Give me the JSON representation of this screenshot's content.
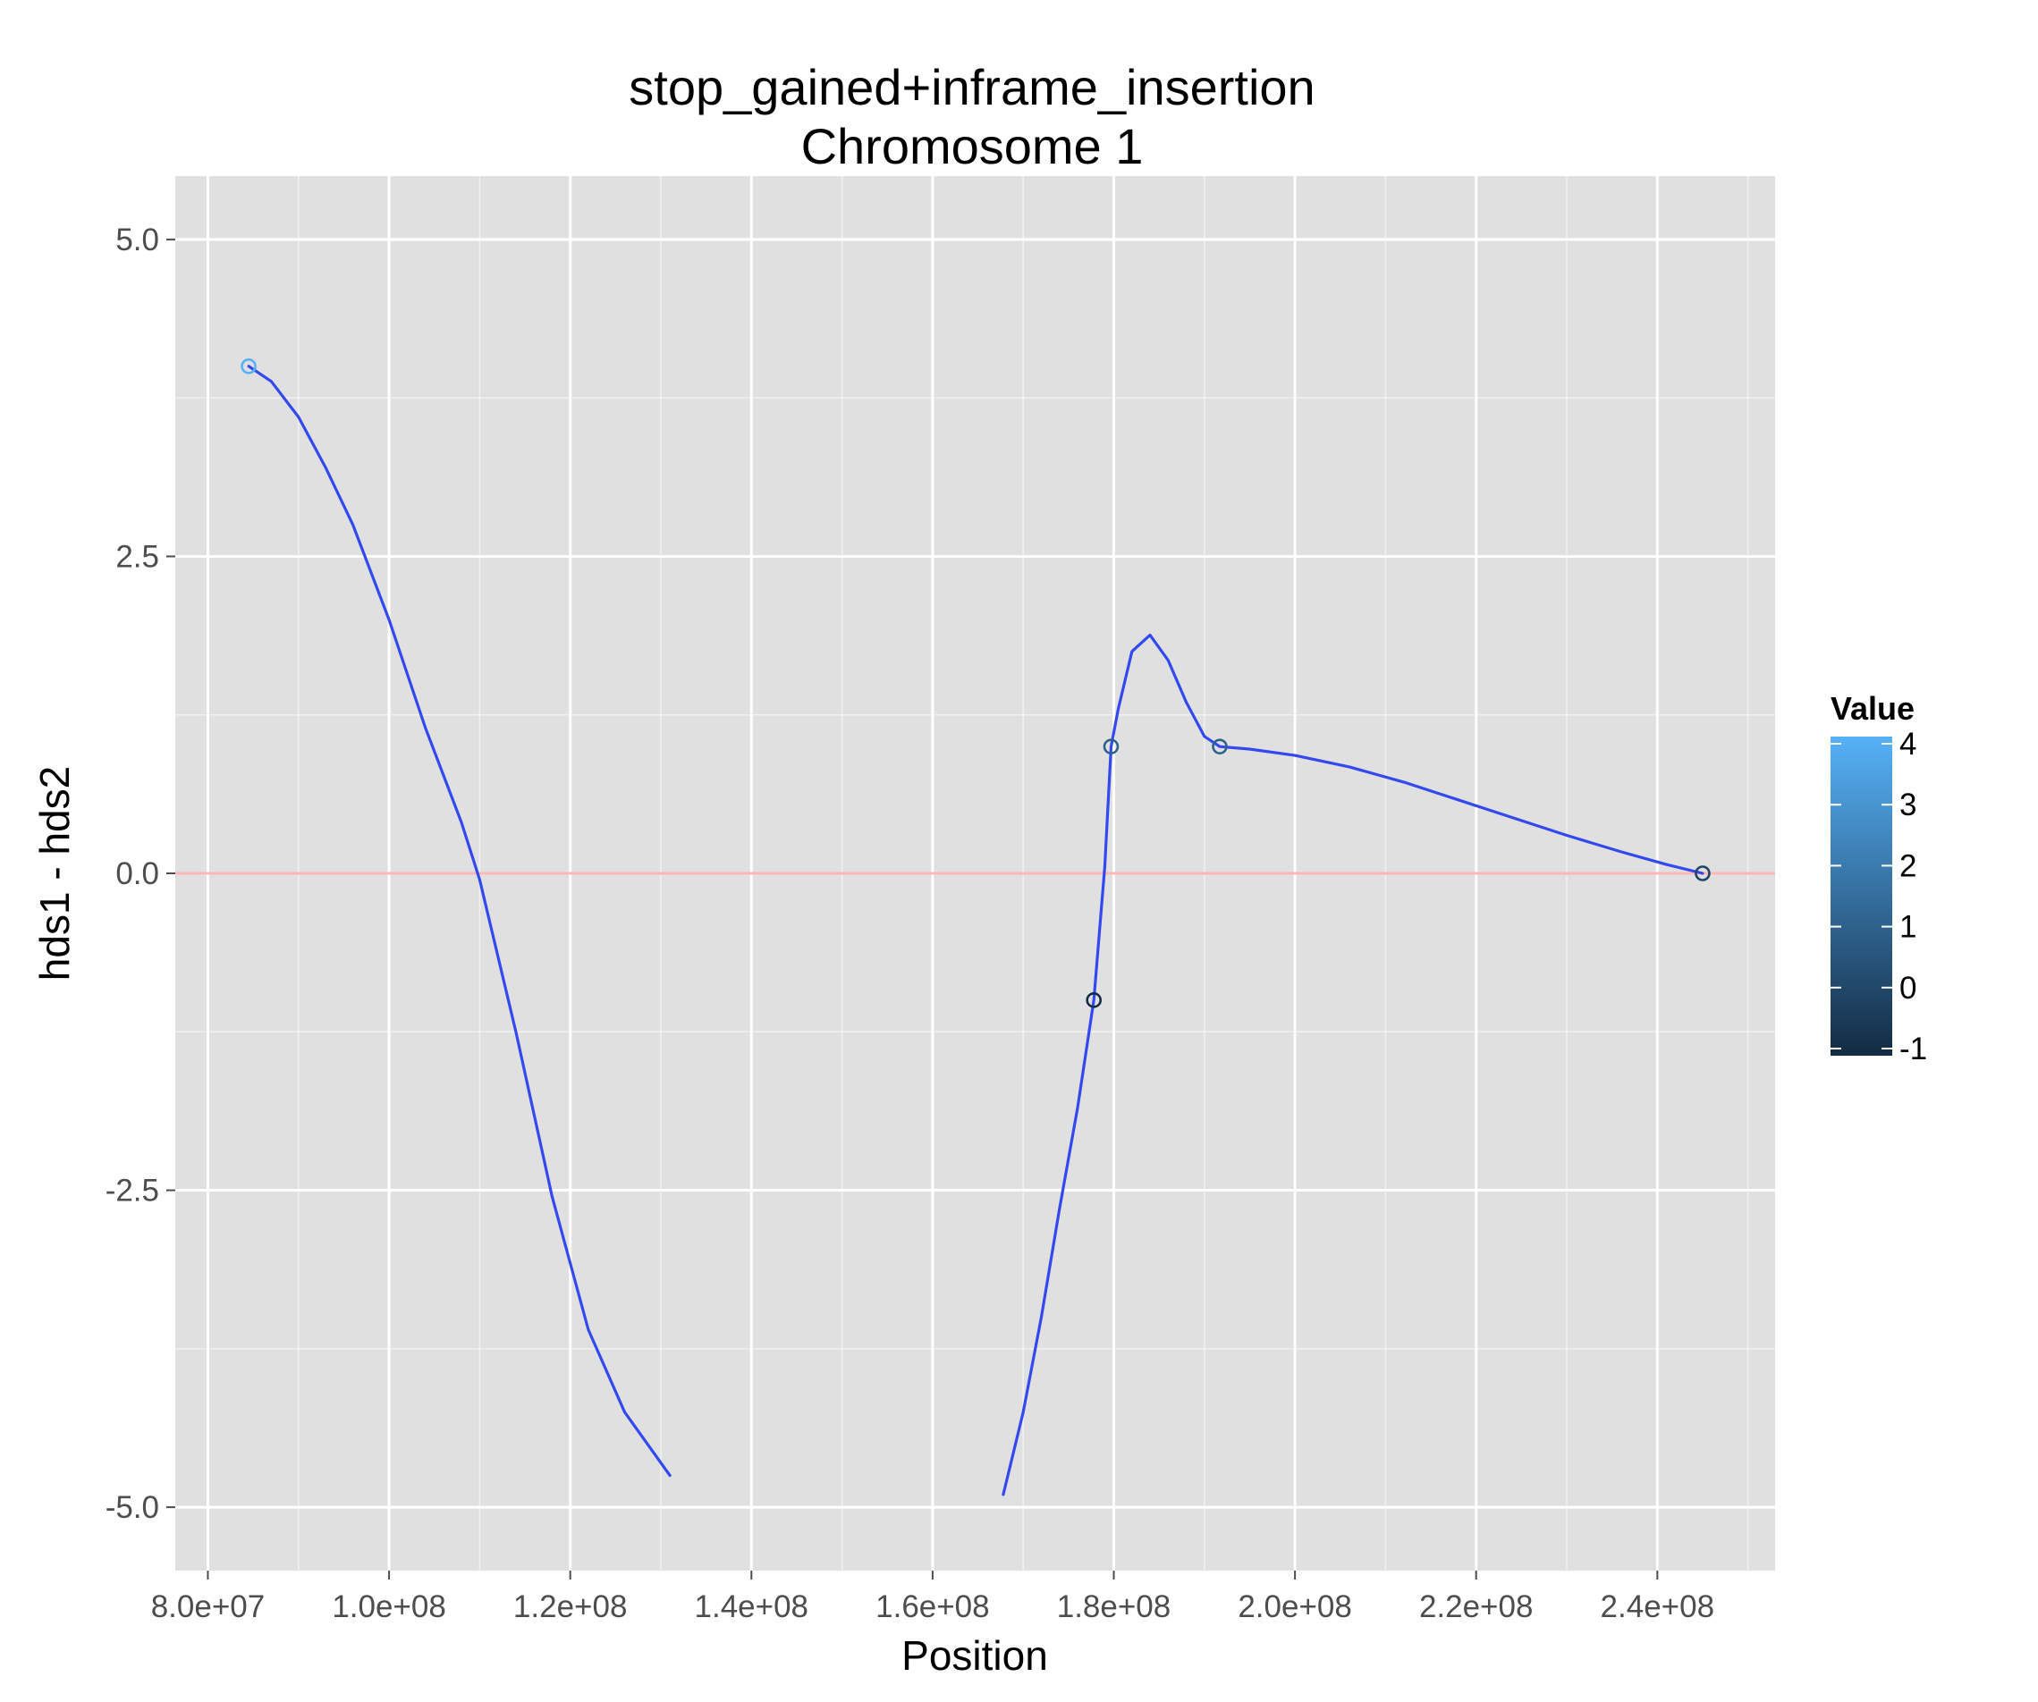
{
  "chart_data": {
    "type": "line",
    "title": "stop_gained+inframe_insertion",
    "subtitle": "Chromosome 1",
    "xlabel": "Position",
    "ylabel": "hds1 - hds2",
    "xlim": [
      76400000,
      253000000
    ],
    "ylim": [
      -5.5,
      5.5
    ],
    "x_ticks": [
      80000000,
      100000000,
      120000000,
      140000000,
      160000000,
      180000000,
      200000000,
      220000000,
      240000000
    ],
    "x_tick_labels": [
      "8.0e+07",
      "1.0e+08",
      "1.2e+08",
      "1.4e+08",
      "1.6e+08",
      "1.8e+08",
      "2.0e+08",
      "2.2e+08",
      "2.4e+08"
    ],
    "y_ticks": [
      -5,
      -2.5,
      0,
      2.5,
      5
    ],
    "y_tick_labels": [
      "-5.0",
      "-2.5",
      "0.0",
      "2.5",
      "5.0"
    ],
    "grid": true,
    "reference_line": {
      "y": 0,
      "color": "#ffb6b6"
    },
    "points": [
      {
        "x": 84500000,
        "y": 4,
        "value": 4
      },
      {
        "x": 177800000,
        "y": -1,
        "value": -1
      },
      {
        "x": 179700000,
        "y": 1,
        "value": 1
      },
      {
        "x": 191700000,
        "y": 1,
        "value": 1
      },
      {
        "x": 245000000,
        "y": 0,
        "value": 0
      }
    ],
    "smooth_segments": [
      {
        "name": "",
        "x": [
          84500000,
          87000000,
          90000000,
          93000000,
          96000000,
          100000000,
          104000000,
          108000000,
          110000000,
          114000000,
          118000000,
          122000000,
          126000000,
          131000000
        ],
        "y": [
          4,
          3.88,
          3.6,
          3.2,
          2.75,
          2.0,
          1.15,
          0.4,
          -0.05,
          -1.25,
          -2.55,
          -3.6,
          -4.25,
          -4.75
        ]
      },
      {
        "name": "",
        "x": [
          167800000,
          170000000,
          172000000,
          174000000,
          176000000,
          177800000,
          179000000,
          179700000,
          180500000,
          182000000,
          184000000,
          186000000,
          188000000,
          190000000,
          191700000,
          195000000,
          200000000,
          206000000,
          212000000,
          218000000,
          224000000,
          230000000,
          236000000,
          241000000,
          245000000
        ],
        "y": [
          -4.9,
          -4.25,
          -3.5,
          -2.65,
          -1.85,
          -1.0,
          0.05,
          1.0,
          1.3,
          1.75,
          1.88,
          1.68,
          1.35,
          1.08,
          1.0,
          0.98,
          0.93,
          0.84,
          0.72,
          0.58,
          0.44,
          0.3,
          0.17,
          0.07,
          0.0
        ]
      }
    ],
    "line_color": "#3249f0",
    "legend": {
      "title": "Value",
      "position": "right",
      "type": "gradient",
      "labels": [
        "4",
        "3",
        "2",
        "1",
        "0",
        "-1"
      ],
      "range": [
        -1,
        4
      ],
      "color_low": "#132b43",
      "color_high": "#56b1f7"
    },
    "panel_background": "#e0e0e0",
    "grid_color": "#ffffff"
  }
}
